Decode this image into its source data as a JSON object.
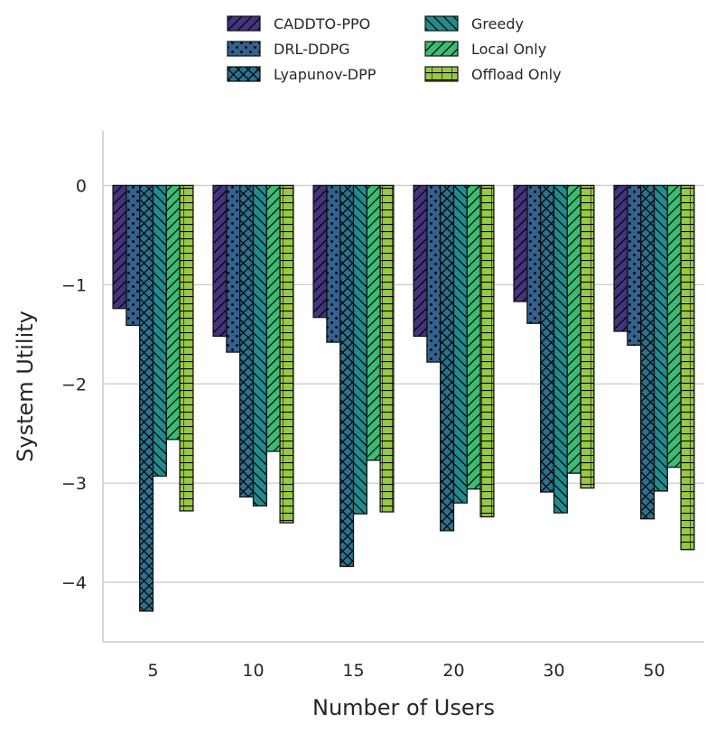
{
  "chart_data": {
    "type": "bar",
    "title": "",
    "xlabel": "Number of Users",
    "ylabel": "System Utility",
    "categories": [
      "5",
      "10",
      "15",
      "20",
      "30",
      "50"
    ],
    "ylim": [
      -4.6,
      0.55
    ],
    "yticks": [
      0,
      -1,
      -2,
      -3,
      -4
    ],
    "ytick_labels": [
      "0",
      "−1",
      "−2",
      "−3",
      "−4"
    ],
    "grid": "horizontal",
    "legend_position": "top-center",
    "series": [
      {
        "name": "CADDTO-PPO",
        "color": "#45337d",
        "hatch": "diagonal-forward",
        "values": [
          -1.24,
          -1.52,
          -1.33,
          -1.52,
          -1.17,
          -1.47
        ]
      },
      {
        "name": "DRL-DDPG",
        "color": "#34618d",
        "hatch": "dots",
        "values": [
          -1.41,
          -1.68,
          -1.58,
          -1.78,
          -1.39,
          -1.61
        ]
      },
      {
        "name": "Lyapunov-DPP",
        "color": "#2d718e",
        "hatch": "cross",
        "values": [
          -4.29,
          -3.14,
          -3.84,
          -3.48,
          -3.09,
          -3.36
        ]
      },
      {
        "name": "Greedy",
        "color": "#228b8d",
        "hatch": "diagonal-back",
        "values": [
          -2.93,
          -3.23,
          -3.31,
          -3.2,
          -3.3,
          -3.08
        ]
      },
      {
        "name": "Local Only",
        "color": "#3bbb75",
        "hatch": "diagonal-forward",
        "values": [
          -2.56,
          -2.68,
          -2.77,
          -3.06,
          -2.9,
          -2.84
        ]
      },
      {
        "name": "Offload Only",
        "color": "#98c845",
        "hatch": "horizontal-grid",
        "values": [
          -3.28,
          -3.4,
          -3.29,
          -3.34,
          -3.05,
          -3.67
        ]
      }
    ]
  }
}
